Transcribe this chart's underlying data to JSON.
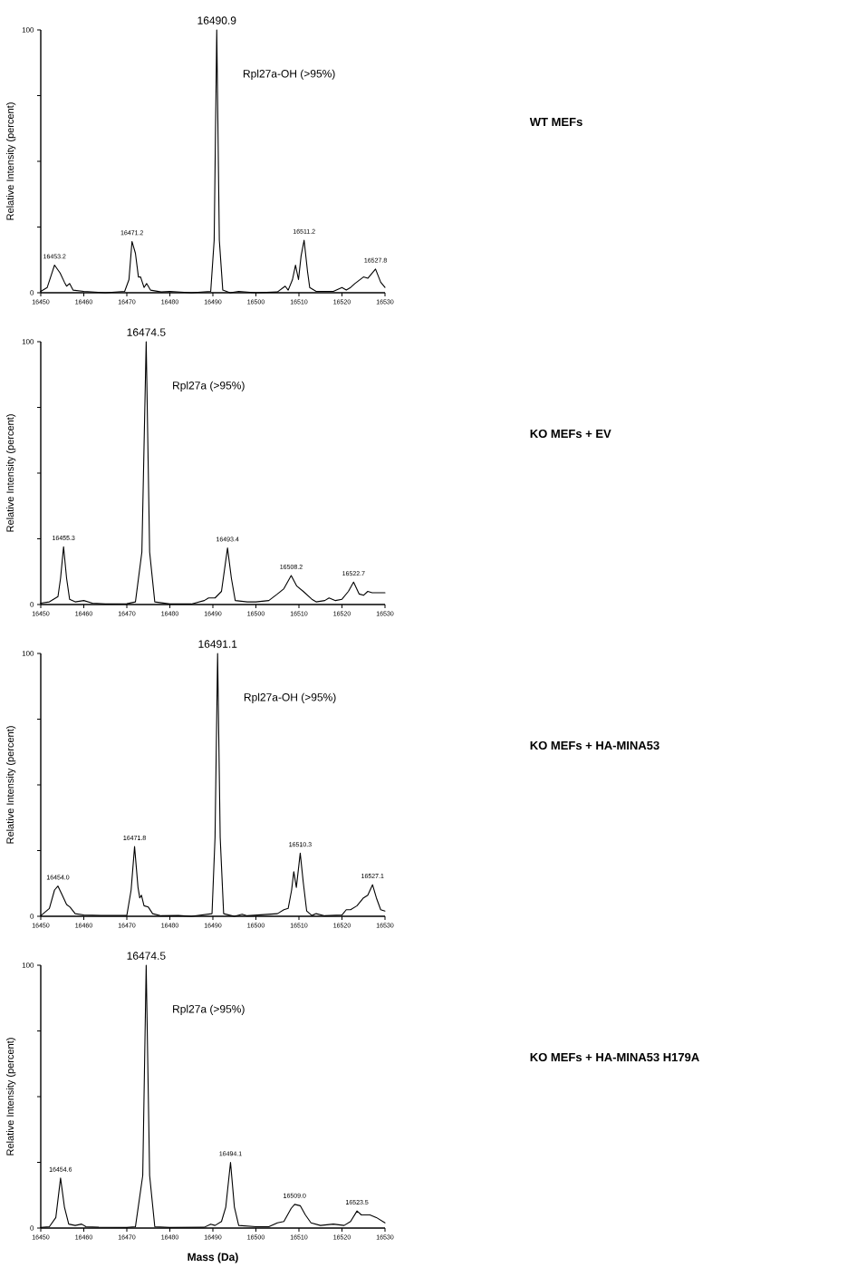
{
  "chart_data": [
    {
      "type": "line",
      "ylabel": "Relative Intensity (percent)",
      "color": "#000000",
      "x": [
        16450,
        16451.5,
        16452.5,
        16453.2,
        16454.5,
        16455.5,
        16456,
        16456.7,
        16457.5,
        16460,
        16465,
        16469.5,
        16470.5,
        16471.2,
        16472,
        16472.7,
        16473.2,
        16474,
        16474.6,
        16475.5,
        16478,
        16480,
        16485,
        16489.5,
        16490.3,
        16490.9,
        16491.5,
        16492.3,
        16494,
        16496,
        16500,
        16505,
        16506.8,
        16507.5,
        16508.5,
        16509.2,
        16509.9,
        16510.5,
        16511.2,
        16512,
        16512.5,
        16514,
        16518,
        16520,
        16521,
        16522,
        16523,
        16525,
        16526,
        16527.8,
        16529,
        16530
      ],
      "values": [
        0.5,
        2,
        7,
        10.5,
        7.5,
        4,
        2.5,
        3.5,
        1,
        0.5,
        0,
        0.5,
        5,
        19.5,
        15,
        6,
        6,
        2,
        3.5,
        1,
        0.3,
        0.5,
        0,
        0.5,
        20,
        100,
        20,
        1,
        0,
        0.5,
        0,
        0.3,
        2.5,
        1,
        5,
        10.5,
        5,
        14,
        20,
        8,
        2,
        0.5,
        0.5,
        2,
        1,
        2,
        3.5,
        6,
        5.5,
        9,
        4,
        2
      ],
      "xlim": [
        16450,
        16530
      ],
      "ylim": [
        0,
        100
      ],
      "xticks": [
        16450,
        16460,
        16470,
        16480,
        16490,
        16500,
        16510,
        16520,
        16530
      ],
      "yticks": [
        0,
        {
          "value": 25,
          "label": null
        },
        {
          "value": 50,
          "label": null
        },
        {
          "value": 75,
          "label": null
        },
        100
      ],
      "annotations": [
        {
          "text": "16490.9",
          "x": 16490.9,
          "y": 100
        },
        {
          "text": "16453.2",
          "x": 16453.2,
          "y": 10.5
        },
        {
          "text": "16471.2",
          "x": 16471.2,
          "y": 19.5
        },
        {
          "text": "16511.2",
          "x": 16511.2,
          "y": 20
        },
        {
          "text": "16527.8",
          "x": 16527.8,
          "y": 9
        },
        "Rpl27a-OH (>95%)",
        "WT MEFs"
      ]
    },
    {
      "type": "line",
      "ylabel": "Relative Intensity (percent)",
      "color": "#000000",
      "x": [
        16450,
        16452,
        16454,
        16454.6,
        16455.3,
        16456,
        16456.7,
        16458,
        16460,
        16462,
        16465,
        16470,
        16472,
        16473.5,
        16474.5,
        16475.3,
        16476.5,
        16480,
        16485,
        16488,
        16489,
        16490.5,
        16492,
        16493.4,
        16494.3,
        16495.2,
        16498,
        16500,
        16503,
        16505,
        16506.5,
        16508.2,
        16509.5,
        16511,
        16513,
        16514,
        16516,
        16517,
        16518.5,
        16520,
        16521.5,
        16522.7,
        16524,
        16525,
        16526,
        16527,
        16530
      ],
      "values": [
        0.5,
        1,
        3,
        10,
        22,
        10,
        2,
        1,
        1.5,
        0.5,
        0.2,
        0.3,
        1,
        20,
        100,
        20,
        1,
        0.2,
        0.2,
        1.5,
        2.5,
        2.5,
        5,
        21.5,
        10,
        1.5,
        1,
        1,
        1.5,
        4,
        6,
        11,
        7,
        5,
        2,
        1,
        1.5,
        2.5,
        1.5,
        2,
        5,
        8.5,
        4,
        3.5,
        5,
        4.5,
        4.5
      ],
      "xlim": [
        16450,
        16530
      ],
      "ylim": [
        0,
        100
      ],
      "xticks": [
        16450,
        16460,
        16470,
        16480,
        16490,
        16500,
        16510,
        16520,
        16530
      ],
      "yticks": [
        0,
        {
          "value": 25,
          "label": null
        },
        {
          "value": 50,
          "label": null
        },
        {
          "value": 75,
          "label": null
        },
        100
      ],
      "annotations": [
        {
          "text": "16474.5",
          "x": 16474.5,
          "y": 100
        },
        {
          "text": "16455.3",
          "x": 16455.3,
          "y": 22
        },
        {
          "text": "16493.4",
          "x": 16493.4,
          "y": 21.5
        },
        {
          "text": "16508.2",
          "x": 16508.2,
          "y": 11
        },
        {
          "text": "16522.7",
          "x": 16522.7,
          "y": 8.5
        },
        "Rpl27a (>95%)",
        "KO MEFs + EV"
      ]
    },
    {
      "type": "line",
      "ylabel": "Relative Intensity (percent)",
      "color": "#000000",
      "x": [
        16450,
        16452,
        16453.2,
        16454,
        16455,
        16456,
        16456.8,
        16458,
        16460,
        16464,
        16470,
        16471,
        16471.8,
        16472.6,
        16473,
        16473.4,
        16474,
        16475,
        16476,
        16478,
        16482,
        16485,
        16489.8,
        16490.5,
        16491.1,
        16491.7,
        16492.5,
        16495,
        16496.8,
        16498,
        16505,
        16506.5,
        16507.5,
        16508.3,
        16508.8,
        16509.4,
        16510.3,
        16511,
        16511.8,
        16513,
        16514,
        16516,
        16520,
        16521,
        16522,
        16523.5,
        16525,
        16526,
        16527.1,
        16528,
        16529,
        16530
      ],
      "values": [
        0.2,
        3,
        10,
        11.5,
        8,
        4.5,
        3.5,
        1,
        0.5,
        0.3,
        0.3,
        10,
        26.5,
        11,
        7,
        8,
        4,
        3.5,
        1,
        0.2,
        0.3,
        0,
        1,
        30,
        100,
        30,
        1,
        0,
        0.8,
        0.2,
        1,
        2.5,
        3,
        10,
        17,
        11,
        24,
        13,
        2,
        0.3,
        1,
        0.2,
        0.5,
        2.5,
        2.5,
        4,
        7,
        8,
        12,
        7,
        2.5,
        2
      ],
      "xlim": [
        16450,
        16530
      ],
      "ylim": [
        0,
        100
      ],
      "xticks": [
        16450,
        16460,
        16470,
        16480,
        16490,
        16500,
        16510,
        16520,
        16530
      ],
      "yticks": [
        0,
        {
          "value": 25,
          "label": null
        },
        {
          "value": 50,
          "label": null
        },
        {
          "value": 75,
          "label": null
        },
        100
      ],
      "annotations": [
        {
          "text": "16491.1",
          "x": 16491.1,
          "y": 100
        },
        {
          "text": "16454.0",
          "x": 16454.0,
          "y": 11.5
        },
        {
          "text": "16471.8",
          "x": 16471.8,
          "y": 26.5
        },
        {
          "text": "16510.3",
          "x": 16510.3,
          "y": 24
        },
        {
          "text": "16527.1",
          "x": 16527.1,
          "y": 12
        },
        "Rpl27a-OH (>95%)",
        "KO MEFs + HA-MINA53"
      ]
    },
    {
      "type": "line",
      "ylabel": "Relative Intensity (percent)",
      "xlabel": "Mass (Da)",
      "color": "#000000",
      "x": [
        16450,
        16452,
        16453.5,
        16454.6,
        16455.5,
        16456.5,
        16458,
        16459.5,
        16460.5,
        16463.5,
        16470,
        16472,
        16473.7,
        16474.5,
        16475.3,
        16476.5,
        16480,
        16488,
        16489.5,
        16490.5,
        16492,
        16493,
        16494.1,
        16495,
        16496,
        16500,
        16503,
        16505,
        16506.5,
        16508.2,
        16509,
        16510.3,
        16511.5,
        16512.8,
        16515,
        16518,
        16520.5,
        16522,
        16523.5,
        16524.5,
        16526.5,
        16528,
        16530
      ],
      "values": [
        0.2,
        0.5,
        4,
        19,
        8,
        1.5,
        1,
        1.5,
        0.5,
        0.3,
        0.2,
        0.5,
        20,
        100,
        20,
        0.5,
        0.2,
        0.3,
        1.5,
        1,
        2.5,
        8,
        25,
        8,
        1,
        0.5,
        0.5,
        2,
        2.5,
        7.5,
        9,
        8.5,
        5,
        2,
        1,
        1.5,
        1,
        2.5,
        6.5,
        5,
        5,
        4,
        2
      ],
      "xlim": [
        16450,
        16530
      ],
      "ylim": [
        0,
        100
      ],
      "xticks": [
        16450,
        16460,
        16470,
        16480,
        16490,
        16500,
        16510,
        16520,
        16530
      ],
      "yticks": [
        0,
        {
          "value": 25,
          "label": null
        },
        {
          "value": 50,
          "label": null
        },
        {
          "value": 75,
          "label": null
        },
        100
      ],
      "annotations": [
        {
          "text": "16474.5",
          "x": 16474.5,
          "y": 100
        },
        {
          "text": "16454.6",
          "x": 16454.6,
          "y": 19
        },
        {
          "text": "16494.1",
          "x": 16494.1,
          "y": 25
        },
        {
          "text": "16509.0",
          "x": 16509.0,
          "y": 9
        },
        {
          "text": "16523.5",
          "x": 16523.5,
          "y": 6.5
        },
        "Rpl27a (>95%)",
        "KO MEFs + HA-MINA53 H179A"
      ]
    }
  ]
}
